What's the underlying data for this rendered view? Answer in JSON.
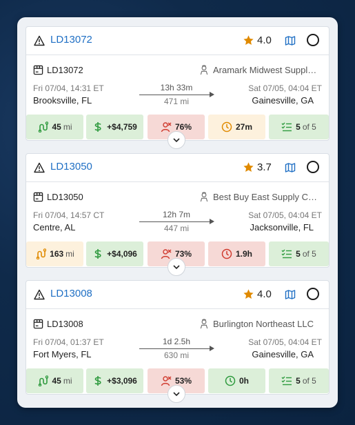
{
  "loads": [
    {
      "id": "LD13072",
      "rating": "4.0",
      "shipper": "Aramark Midwest Suppl…",
      "pickup_time": "Fri 07/04, 14:31 ET",
      "pickup_city": "Brooksville, FL",
      "duration": "13h 33m",
      "distance": "471 mi",
      "dropoff_time": "Sat 07/05, 04:04 ET",
      "dropoff_city": "Gainesville, GA",
      "deadhead_value": "45",
      "deadhead_unit": "mi",
      "deadhead_status": "good",
      "profit": "+$4,759",
      "risk": "76%",
      "wait": "27m",
      "wait_status": "warn",
      "match_value": "5",
      "match_of": "of 5"
    },
    {
      "id": "LD13050",
      "rating": "3.7",
      "shipper": "Best Buy East Supply C…",
      "pickup_time": "Fri 07/04, 14:57 CT",
      "pickup_city": "Centre, AL",
      "duration": "12h 7m",
      "distance": "447 mi",
      "dropoff_time": "Sat 07/05, 04:04 ET",
      "dropoff_city": "Jacksonville, FL",
      "deadhead_value": "163",
      "deadhead_unit": "mi",
      "deadhead_status": "warn",
      "profit": "+$4,096",
      "risk": "73%",
      "wait": "1.9h",
      "wait_status": "bad",
      "match_value": "5",
      "match_of": "of 5"
    },
    {
      "id": "LD13008",
      "rating": "4.0",
      "shipper": "Burlington Northeast LLC",
      "pickup_time": "Fri 07/04, 01:37 ET",
      "pickup_city": "Fort Myers, FL",
      "duration": "1d 2.5h",
      "distance": "630 mi",
      "dropoff_time": "Sat 07/05, 04:04 ET",
      "dropoff_city": "Gainesville, GA",
      "deadhead_value": "45",
      "deadhead_unit": "mi",
      "deadhead_status": "good",
      "profit": "+$3,096",
      "risk": "53%",
      "wait": "0h",
      "wait_status": "good",
      "match_value": "5",
      "match_of": "of 5"
    }
  ],
  "colors": {
    "link": "#1f6fc4",
    "star": "#e08a00",
    "good_bg": "#dcefd9",
    "good_fg": "#2e9a3e",
    "bad_bg": "#f6d9d6",
    "bad_fg": "#d03b2f",
    "warn_bg": "#fdf1dd",
    "warn_fg": "#e08a00"
  },
  "icons": [
    "warning-triangle-icon",
    "star-icon",
    "map-icon",
    "select-circle",
    "package-icon",
    "shipper-person-icon",
    "route-icon",
    "dollar-icon",
    "risk-person-icon",
    "clock-icon",
    "checklist-icon",
    "chevron-down-icon"
  ]
}
